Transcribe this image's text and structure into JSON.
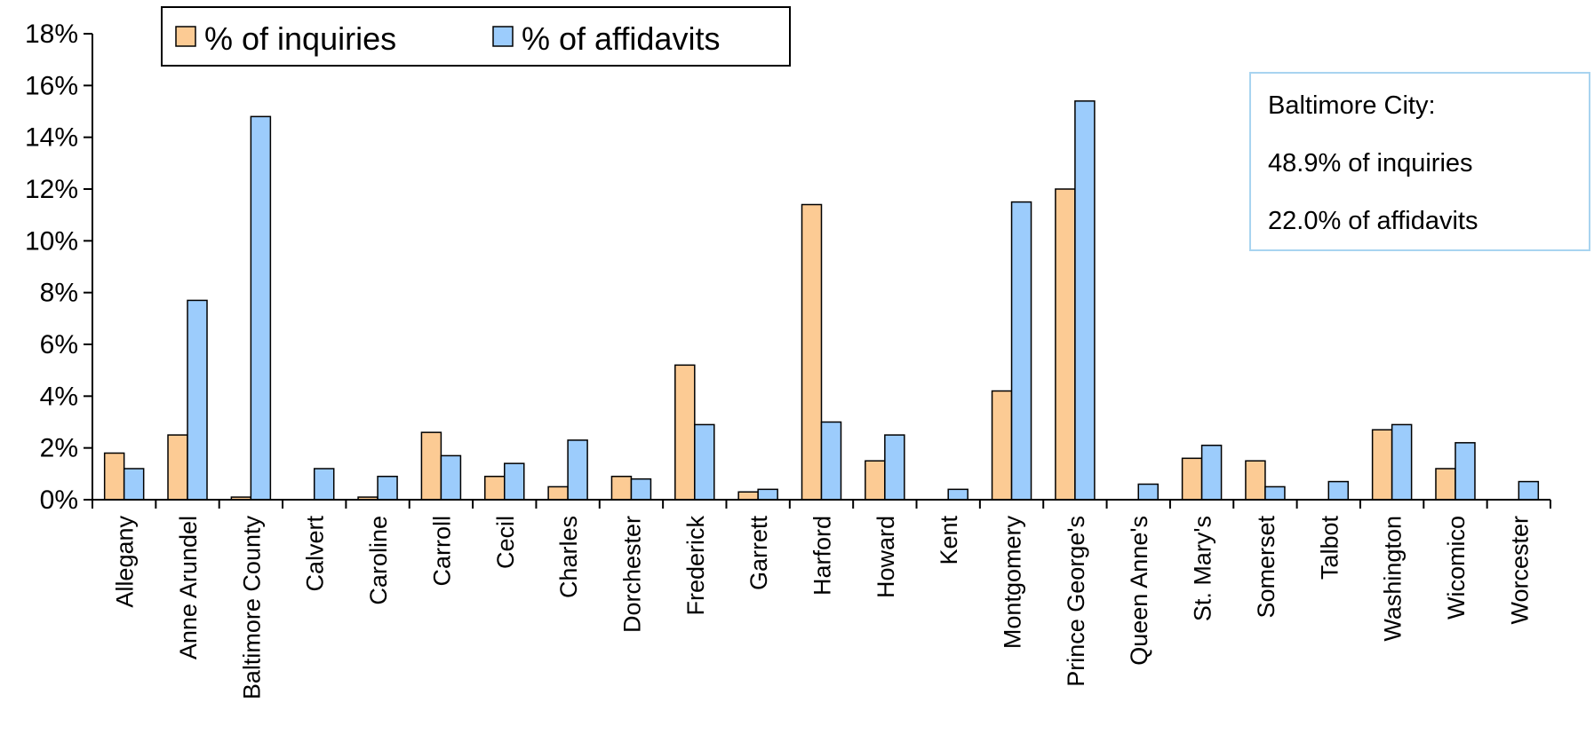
{
  "chart_data": {
    "type": "bar",
    "categories": [
      "Allegany",
      "Anne Arundel",
      "Baltimore County",
      "Calvert",
      "Caroline",
      "Carroll",
      "Cecil",
      "Charles",
      "Dorchester",
      "Frederick",
      "Garrett",
      "Harford",
      "Howard",
      "Kent",
      "Montgomery",
      "Prince George's",
      "Queen Anne's",
      "St. Mary's",
      "Somerset",
      "Talbot",
      "Washington",
      "Wicomico",
      "Worcester"
    ],
    "series": [
      {
        "name": "% of inquiries",
        "color": "#FCCB94",
        "values": [
          1.8,
          2.5,
          0.1,
          0.0,
          0.1,
          2.6,
          0.9,
          0.5,
          0.9,
          5.2,
          0.3,
          11.4,
          1.5,
          0.0,
          4.2,
          12.0,
          0.0,
          1.6,
          1.5,
          0.0,
          2.7,
          1.2,
          0.0
        ]
      },
      {
        "name": "% of affidavits",
        "color": "#9CCCFC",
        "values": [
          1.2,
          7.7,
          14.8,
          1.2,
          0.9,
          1.7,
          1.4,
          2.3,
          0.8,
          2.9,
          0.4,
          3.0,
          2.5,
          0.4,
          11.5,
          15.4,
          0.6,
          2.1,
          0.5,
          0.7,
          2.9,
          2.2,
          0.7
        ]
      }
    ],
    "y_ticks": [
      "0%",
      "2%",
      "4%",
      "6%",
      "8%",
      "10%",
      "12%",
      "14%",
      "16%",
      "18%"
    ],
    "ylim": [
      0,
      18
    ],
    "grid": false,
    "legend_position": "top-left",
    "annotation": {
      "lines": [
        "Baltimore City:",
        "48.9% of inquiries",
        "22.0% of affidavits"
      ],
      "border_color": "#A8D4F0"
    }
  }
}
